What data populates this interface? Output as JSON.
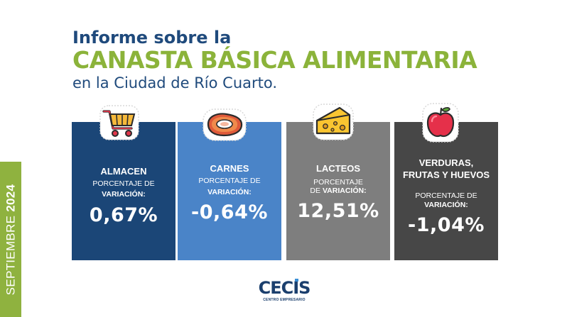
{
  "side_band": {
    "light": "SEPTIEMBRE ",
    "bold": "2024",
    "color": "#8fb23f"
  },
  "heading": {
    "line1": "Informe sobre la",
    "line2": "CANASTA BÁSICA ALIMENTARIA",
    "line3": "en la Ciudad de Río Cuarto."
  },
  "cards": [
    {
      "title": "ALMACEN",
      "sub1": "PORCENTAJE DE",
      "sub2": "VARIACIÓN:",
      "value": "0,67%",
      "icon": "shopping-cart-icon",
      "color": "#1b4677"
    },
    {
      "title": "CARNES",
      "sub1": "PORCENTAJE DE",
      "sub2": "VARIACIÓN:",
      "value": "-0,64%",
      "icon": "meat-steak-icon",
      "color": "#4a84c8"
    },
    {
      "title": "LACTEOS",
      "sub1": "PORCENTAJE",
      "sub2_light": "DE ",
      "sub2": "VARIACIÓN:",
      "value": "12,51%",
      "icon": "cheese-icon",
      "color": "#7e7e7e"
    },
    {
      "title1": "VERDURAS,",
      "title2": "FRUTAS Y HUEVOS",
      "sub1": "PORCENTAJE DE",
      "sub2": "VARIACIÓN:",
      "value": "-1,04%",
      "icon": "apple-icon",
      "color": "#474747"
    }
  ],
  "logo": {
    "text": "CECIS",
    "sub": "CENTRO EMPRESARIO"
  }
}
